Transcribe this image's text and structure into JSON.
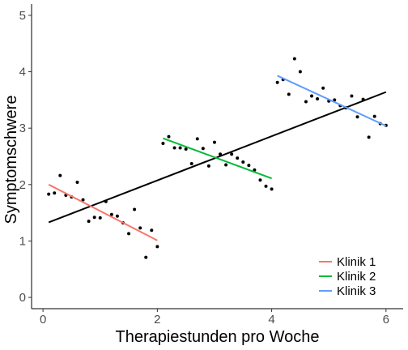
{
  "chart_data": {
    "type": "scatter",
    "title": "",
    "xlabel": "Therapiestunden pro Woche",
    "ylabel": "Symptomschwere",
    "xlim": [
      -0.2,
      6.3
    ],
    "ylim": [
      -0.2,
      5.2
    ],
    "x_ticks": [
      0,
      2,
      4,
      6
    ],
    "y_ticks": [
      0,
      1,
      2,
      3,
      4,
      5
    ],
    "grid": false,
    "legend_position": "bottom-right",
    "colors": {
      "points": "#000000",
      "overall_line": "#000000",
      "Klinik 1": "#F8766D",
      "Klinik 2": "#00BA38",
      "Klinik 3": "#619CFF"
    },
    "points": [
      {
        "x": 0.1,
        "y": 1.83
      },
      {
        "x": 0.2,
        "y": 1.85
      },
      {
        "x": 0.3,
        "y": 2.16
      },
      {
        "x": 0.4,
        "y": 1.81
      },
      {
        "x": 0.5,
        "y": 1.78
      },
      {
        "x": 0.6,
        "y": 2.04
      },
      {
        "x": 0.7,
        "y": 1.73
      },
      {
        "x": 0.8,
        "y": 1.35
      },
      {
        "x": 0.9,
        "y": 1.42
      },
      {
        "x": 1.0,
        "y": 1.41
      },
      {
        "x": 1.1,
        "y": 1.7
      },
      {
        "x": 1.2,
        "y": 1.47
      },
      {
        "x": 1.3,
        "y": 1.44
      },
      {
        "x": 1.4,
        "y": 1.32
      },
      {
        "x": 1.5,
        "y": 1.13
      },
      {
        "x": 1.6,
        "y": 1.56
      },
      {
        "x": 1.7,
        "y": 1.23
      },
      {
        "x": 1.8,
        "y": 0.71
      },
      {
        "x": 1.9,
        "y": 1.19
      },
      {
        "x": 2.0,
        "y": 0.9
      },
      {
        "x": 2.1,
        "y": 2.73
      },
      {
        "x": 2.2,
        "y": 2.85
      },
      {
        "x": 2.3,
        "y": 2.65
      },
      {
        "x": 2.4,
        "y": 2.65
      },
      {
        "x": 2.5,
        "y": 2.63
      },
      {
        "x": 2.6,
        "y": 2.37
      },
      {
        "x": 2.7,
        "y": 2.81
      },
      {
        "x": 2.8,
        "y": 2.64
      },
      {
        "x": 2.9,
        "y": 2.33
      },
      {
        "x": 3.0,
        "y": 2.75
      },
      {
        "x": 3.1,
        "y": 2.54
      },
      {
        "x": 3.2,
        "y": 2.35
      },
      {
        "x": 3.3,
        "y": 2.54
      },
      {
        "x": 3.4,
        "y": 2.47
      },
      {
        "x": 3.5,
        "y": 2.4
      },
      {
        "x": 3.6,
        "y": 2.34
      },
      {
        "x": 3.7,
        "y": 2.26
      },
      {
        "x": 3.8,
        "y": 2.08
      },
      {
        "x": 3.9,
        "y": 1.97
      },
      {
        "x": 4.0,
        "y": 1.92
      },
      {
        "x": 4.1,
        "y": 3.81
      },
      {
        "x": 4.2,
        "y": 3.86
      },
      {
        "x": 4.3,
        "y": 3.6
      },
      {
        "x": 4.4,
        "y": 4.23
      },
      {
        "x": 4.5,
        "y": 4.0
      },
      {
        "x": 4.6,
        "y": 3.47
      },
      {
        "x": 4.7,
        "y": 3.57
      },
      {
        "x": 4.8,
        "y": 3.52
      },
      {
        "x": 4.9,
        "y": 3.71
      },
      {
        "x": 5.0,
        "y": 3.48
      },
      {
        "x": 5.1,
        "y": 3.5
      },
      {
        "x": 5.2,
        "y": 3.4
      },
      {
        "x": 5.3,
        "y": 3.36
      },
      {
        "x": 5.4,
        "y": 3.57
      },
      {
        "x": 5.5,
        "y": 3.2
      },
      {
        "x": 5.6,
        "y": 3.51
      },
      {
        "x": 5.7,
        "y": 2.84
      },
      {
        "x": 5.8,
        "y": 3.21
      },
      {
        "x": 5.9,
        "y": 3.08
      },
      {
        "x": 6.0,
        "y": 3.05
      }
    ],
    "overall_fit": {
      "x": [
        0.1,
        6.0
      ],
      "y": [
        1.33,
        3.64
      ]
    },
    "series": [
      {
        "name": "Klinik 1",
        "x": [
          0.1,
          2.0
        ],
        "y": [
          2.0,
          1.01
        ]
      },
      {
        "name": "Klinik 2",
        "x": [
          2.1,
          4.0
        ],
        "y": [
          2.82,
          2.11
        ]
      },
      {
        "name": "Klinik 3",
        "x": [
          4.1,
          6.0
        ],
        "y": [
          3.93,
          3.04
        ]
      }
    ]
  }
}
